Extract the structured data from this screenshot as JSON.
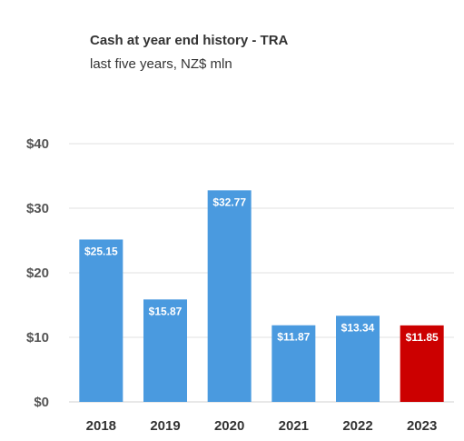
{
  "chart_data": {
    "type": "bar",
    "title": "Cash at year end history - TRA",
    "subtitle": "last five years, NZ$ mln",
    "categories": [
      "2018",
      "2019",
      "2020",
      "2021",
      "2022",
      "2023"
    ],
    "values": [
      25.15,
      15.87,
      32.77,
      11.87,
      13.34,
      11.85
    ],
    "data_labels": [
      "$25.15",
      "$15.87",
      "$32.77",
      "$11.87",
      "$13.34",
      "$11.85"
    ],
    "ylim": [
      0,
      40
    ],
    "yticks": [
      0,
      10,
      20,
      30,
      40
    ],
    "ytick_labels": [
      "$0",
      "$10",
      "$20",
      "$30",
      "$40"
    ],
    "grid": true,
    "colors": {
      "default": "#4A9ADF",
      "highlight": "#CC0000"
    },
    "highlight_index": 5
  }
}
